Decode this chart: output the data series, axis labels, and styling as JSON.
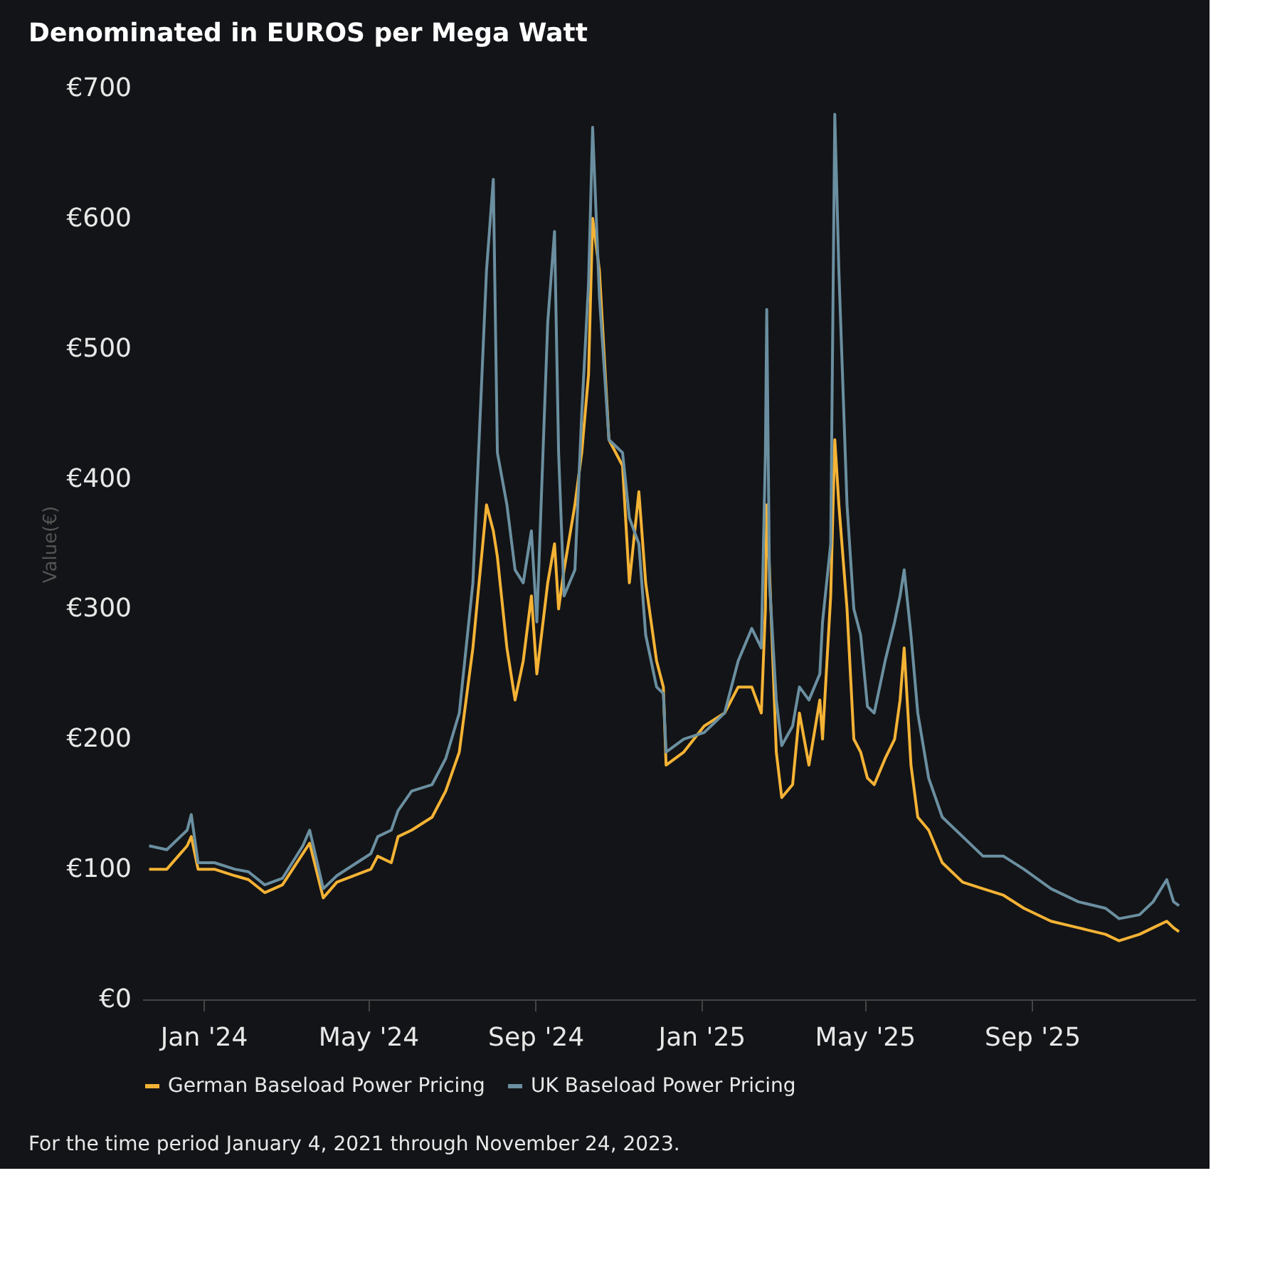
{
  "chart_data": {
    "type": "line",
    "title": "Denominated in EUROS per Mega Watt",
    "ylabel": "Value(€)",
    "x": [
      "2023-11-22",
      "2023-12-05",
      "2023-12-20",
      "2023-12-23",
      "2023-12-28",
      "2024-01-09",
      "2024-01-24",
      "2024-02-03",
      "2024-02-15",
      "2024-02-28",
      "2024-03-14",
      "2024-03-19",
      "2024-03-29",
      "2024-04-08",
      "2024-05-03",
      "2024-05-08",
      "2024-05-18",
      "2024-05-23",
      "2024-06-02",
      "2024-06-17",
      "2024-06-27",
      "2024-07-07",
      "2024-07-17",
      "2024-07-27",
      "2024-08-01",
      "2024-08-04",
      "2024-08-11",
      "2024-08-17",
      "2024-08-23",
      "2024-08-29",
      "2024-09-02",
      "2024-09-10",
      "2024-09-15",
      "2024-09-18",
      "2024-09-22",
      "2024-09-30",
      "2024-10-05",
      "2024-10-10",
      "2024-10-13",
      "2024-10-18",
      "2024-10-25",
      "2024-11-04",
      "2024-11-09",
      "2024-11-16",
      "2024-11-21",
      "2024-11-29",
      "2024-12-04",
      "2024-12-06",
      "2024-12-19",
      "2025-01-03",
      "2025-01-18",
      "2025-01-28",
      "2025-02-07",
      "2025-02-14",
      "2025-02-17",
      "2025-02-18",
      "2025-02-20",
      "2025-02-25",
      "2025-03-01",
      "2025-03-09",
      "2025-03-14",
      "2025-03-21",
      "2025-03-29",
      "2025-03-31",
      "2025-04-06",
      "2025-04-09",
      "2025-04-12",
      "2025-04-18",
      "2025-04-23",
      "2025-04-28",
      "2025-05-03",
      "2025-05-08",
      "2025-05-16",
      "2025-05-23",
      "2025-05-27",
      "2025-05-30",
      "2025-06-04",
      "2025-06-09",
      "2025-06-17",
      "2025-06-27",
      "2025-07-12",
      "2025-07-27",
      "2025-08-11",
      "2025-08-26",
      "2025-09-15",
      "2025-10-05",
      "2025-10-25",
      "2025-11-04",
      "2025-11-19",
      "2025-11-29",
      "2025-12-09",
      "2025-12-14",
      "2025-12-18"
    ],
    "series": [
      {
        "name": "German Baseload Power Pricing",
        "color": "#f5b335",
        "values": [
          100,
          100,
          118,
          125,
          100,
          100,
          95,
          92,
          82,
          88,
          112,
          120,
          78,
          90,
          100,
          110,
          105,
          125,
          130,
          140,
          160,
          190,
          270,
          380,
          360,
          340,
          270,
          230,
          260,
          310,
          250,
          320,
          350,
          300,
          330,
          380,
          420,
          480,
          600,
          560,
          430,
          410,
          320,
          390,
          320,
          260,
          240,
          180,
          190,
          210,
          220,
          240,
          240,
          220,
          300,
          380,
          330,
          190,
          155,
          165,
          220,
          180,
          230,
          200,
          310,
          430,
          380,
          300,
          200,
          190,
          170,
          165,
          185,
          200,
          230,
          270,
          180,
          140,
          130,
          105,
          90,
          85,
          80,
          70,
          60,
          55,
          50,
          45,
          50,
          55,
          60,
          55,
          52
        ]
      },
      {
        "name": "UK Baseload Power Pricing",
        "color": "#6a8fa0",
        "values": [
          118,
          115,
          130,
          142,
          105,
          105,
          100,
          98,
          88,
          93,
          118,
          130,
          85,
          95,
          112,
          125,
          130,
          145,
          160,
          165,
          185,
          220,
          320,
          560,
          630,
          420,
          380,
          330,
          320,
          360,
          290,
          520,
          590,
          420,
          310,
          330,
          450,
          550,
          670,
          540,
          430,
          420,
          370,
          350,
          280,
          240,
          235,
          190,
          200,
          205,
          220,
          260,
          285,
          270,
          420,
          530,
          320,
          230,
          195,
          210,
          240,
          230,
          250,
          290,
          350,
          680,
          560,
          380,
          300,
          280,
          225,
          220,
          260,
          290,
          310,
          330,
          280,
          220,
          170,
          140,
          125,
          110,
          110,
          100,
          85,
          75,
          70,
          62,
          65,
          75,
          92,
          75,
          72
        ]
      }
    ],
    "xlim": [
      "2023-11-17",
      "2025-12-30"
    ],
    "xticks": [
      {
        "value": "2024-01-01",
        "label": "Jan '24"
      },
      {
        "value": "2024-05-01",
        "label": "May '24"
      },
      {
        "value": "2024-09-01",
        "label": "Sep '24"
      },
      {
        "value": "2025-01-01",
        "label": "Jan '25"
      },
      {
        "value": "2025-05-01",
        "label": "May '25"
      },
      {
        "value": "2025-09-01",
        "label": "Sep '25"
      }
    ],
    "ylim": [
      0,
      700
    ],
    "yticks": [
      {
        "value": 0,
        "label": "€0"
      },
      {
        "value": 100,
        "label": "€100"
      },
      {
        "value": 200,
        "label": "€200"
      },
      {
        "value": 300,
        "label": "€300"
      },
      {
        "value": 400,
        "label": "€400"
      },
      {
        "value": 500,
        "label": "€500"
      },
      {
        "value": 600,
        "label": "€600"
      },
      {
        "value": 700,
        "label": "€700"
      }
    ],
    "grid": false,
    "legend": "bottom",
    "marker": "none",
    "line_style": "solid",
    "annotations": [
      "For the time period January 4, 2021 through November 24, 2023."
    ]
  }
}
